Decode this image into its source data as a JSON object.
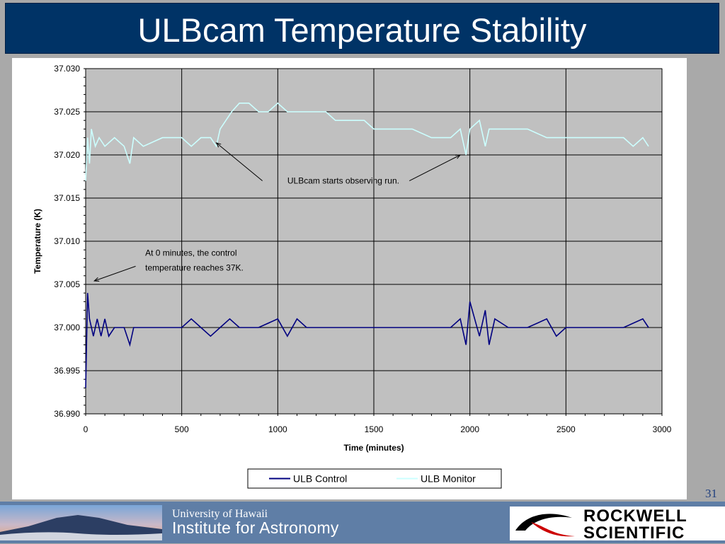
{
  "slide": {
    "title": "ULBcam Temperature Stability",
    "number": "31",
    "footer": {
      "university": "University of Hawaii",
      "institute": "Institute for Astronomy",
      "logo_line1": "ROCKWELL",
      "logo_line2": "SCIENTIFIC",
      "logo_icon": "rockwell-swoosh-icon"
    },
    "colors": {
      "title_bar": "#003366",
      "footer": "#5f7ea6",
      "plot_bg": "#c0c0c0"
    }
  },
  "chart_data": {
    "type": "line",
    "title": "",
    "xlabel": "Time (minutes)",
    "ylabel": "Temperature (K)",
    "xlim": [
      0,
      3000
    ],
    "ylim": [
      36.99,
      37.03
    ],
    "xticks": [
      0,
      500,
      1000,
      1500,
      2000,
      2500,
      3000
    ],
    "xtick_labels": [
      "0",
      "500",
      "1000",
      "1500",
      "2000",
      "2500",
      "3000"
    ],
    "yticks": [
      36.99,
      36.995,
      37.0,
      37.005,
      37.01,
      37.015,
      37.02,
      37.025,
      37.03
    ],
    "ytick_labels": [
      "36.990",
      "36.995",
      "37.000",
      "37.005",
      "37.010",
      "37.015",
      "37.020",
      "37.025",
      "37.030"
    ],
    "grid": true,
    "legend_position": "bottom",
    "series": [
      {
        "name": "ULB Control",
        "color": "#000080",
        "x": [
          0,
          10,
          20,
          40,
          60,
          80,
          100,
          120,
          150,
          200,
          230,
          250,
          300,
          400,
          500,
          550,
          600,
          650,
          700,
          750,
          800,
          900,
          1000,
          1050,
          1100,
          1150,
          1200,
          1250,
          1300,
          1400,
          1500,
          1600,
          1700,
          1800,
          1900,
          1950,
          1980,
          2000,
          2050,
          2080,
          2100,
          2130,
          2200,
          2300,
          2400,
          2450,
          2500,
          2600,
          2700,
          2800,
          2900,
          2930
        ],
        "y": [
          36.993,
          37.004,
          37.001,
          36.999,
          37.001,
          36.999,
          37.001,
          36.999,
          37.0,
          37.0,
          36.998,
          37.0,
          37.0,
          37.0,
          37.0,
          37.001,
          37.0,
          36.999,
          37.0,
          37.001,
          37.0,
          37.0,
          37.001,
          36.999,
          37.001,
          37.0,
          37.0,
          37.0,
          37.0,
          37.0,
          37.0,
          37.0,
          37.0,
          37.0,
          37.0,
          37.001,
          36.998,
          37.003,
          36.999,
          37.002,
          36.998,
          37.001,
          37.0,
          37.0,
          37.001,
          36.999,
          37.0,
          37.0,
          37.0,
          37.0,
          37.001,
          37.0
        ]
      },
      {
        "name": "ULB Monitor",
        "color": "#ccffff",
        "x": [
          0,
          10,
          20,
          30,
          50,
          70,
          100,
          150,
          200,
          230,
          250,
          300,
          400,
          500,
          550,
          600,
          650,
          680,
          700,
          730,
          760,
          800,
          850,
          900,
          950,
          1000,
          1050,
          1100,
          1150,
          1200,
          1250,
          1300,
          1350,
          1400,
          1450,
          1500,
          1550,
          1600,
          1700,
          1800,
          1900,
          1950,
          1980,
          2000,
          2050,
          2080,
          2100,
          2150,
          2200,
          2300,
          2400,
          2500,
          2600,
          2700,
          2800,
          2850,
          2900,
          2930
        ],
        "y": [
          37.017,
          37.022,
          37.019,
          37.023,
          37.021,
          37.022,
          37.021,
          37.022,
          37.021,
          37.019,
          37.022,
          37.021,
          37.022,
          37.022,
          37.021,
          37.022,
          37.022,
          37.021,
          37.023,
          37.024,
          37.025,
          37.026,
          37.026,
          37.025,
          37.025,
          37.026,
          37.025,
          37.025,
          37.025,
          37.025,
          37.025,
          37.024,
          37.024,
          37.024,
          37.024,
          37.023,
          37.023,
          37.023,
          37.023,
          37.022,
          37.022,
          37.023,
          37.02,
          37.023,
          37.024,
          37.021,
          37.023,
          37.023,
          37.023,
          37.023,
          37.022,
          37.022,
          37.022,
          37.022,
          37.022,
          37.021,
          37.022,
          37.021
        ]
      }
    ],
    "annotations": [
      {
        "text": "ULBcam starts observing run.",
        "x": 1050,
        "y": 37.0167
      },
      {
        "text": "At 0 minutes, the control",
        "x": 310,
        "y": 37.0083
      },
      {
        "text": "temperature reaches 37K.",
        "x": 310,
        "y": 37.0066
      }
    ],
    "arrows": [
      {
        "from": [
          920,
          37.017
        ],
        "to": [
          680,
          37.0214
        ]
      },
      {
        "from": [
          1685,
          37.017
        ],
        "to": [
          1950,
          37.02
        ]
      },
      {
        "from": [
          260,
          37.0071
        ],
        "to": [
          45,
          37.0054
        ]
      }
    ]
  }
}
